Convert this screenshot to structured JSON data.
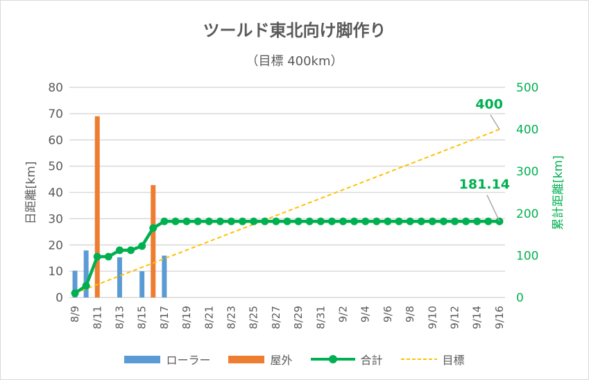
{
  "chart_data": {
    "type": "bar+line",
    "title": "ツールド東北向け脚作り",
    "subtitle": "（目標 400km）",
    "ylabel": "日距離[km]",
    "y2label": "累計距離[km]",
    "ylim": [
      0,
      80
    ],
    "y2lim": [
      0,
      500
    ],
    "yticks": [
      "0",
      "10",
      "20",
      "30",
      "40",
      "50",
      "60",
      "70",
      "80"
    ],
    "y2ticks": [
      "0",
      "100",
      "200",
      "300",
      "400",
      "500"
    ],
    "categories": [
      "8/9",
      "8/10",
      "8/11",
      "8/12",
      "8/13",
      "8/14",
      "8/15",
      "8/16",
      "8/17",
      "8/18",
      "8/19",
      "8/20",
      "8/21",
      "8/22",
      "8/23",
      "8/24",
      "8/25",
      "8/26",
      "8/27",
      "8/28",
      "8/29",
      "8/30",
      "8/31",
      "9/1",
      "9/2",
      "9/3",
      "9/4",
      "9/5",
      "9/6",
      "9/7",
      "9/8",
      "9/9",
      "9/10",
      "9/11",
      "9/12",
      "9/13",
      "9/14",
      "9/15",
      "9/16"
    ],
    "x_tick_labels": [
      "8/9",
      "8/11",
      "8/13",
      "8/15",
      "8/17",
      "8/19",
      "8/21",
      "8/23",
      "8/25",
      "8/27",
      "8/29",
      "8/31",
      "9/2",
      "9/4",
      "9/6",
      "9/8",
      "9/10",
      "9/12",
      "9/14",
      "9/16"
    ],
    "series": [
      {
        "name": "ローラー",
        "type": "bar",
        "axis": "left",
        "color": "#5B9BD5",
        "values": [
          10.2,
          17.9,
          0,
          0,
          15.3,
          0,
          10.0,
          0,
          15.94,
          0,
          0,
          0,
          0,
          0,
          0,
          0,
          0,
          0,
          0,
          0,
          0,
          0,
          0,
          0,
          0,
          0,
          0,
          0,
          0,
          0,
          0,
          0,
          0,
          0,
          0,
          0,
          0,
          0,
          0
        ]
      },
      {
        "name": "屋外",
        "type": "bar",
        "axis": "left",
        "color": "#ED7D31",
        "values": [
          0,
          0,
          69.0,
          0,
          0,
          0,
          0,
          42.8,
          0,
          0,
          0,
          0,
          0,
          0,
          0,
          0,
          0,
          0,
          0,
          0,
          0,
          0,
          0,
          0,
          0,
          0,
          0,
          0,
          0,
          0,
          0,
          0,
          0,
          0,
          0,
          0,
          0,
          0,
          0
        ]
      },
      {
        "name": "合計",
        "type": "line",
        "axis": "right",
        "color": "#00B050",
        "cumulative_of": [
          "ローラー",
          "屋外"
        ],
        "last_label": "181.14"
      },
      {
        "name": "目標",
        "type": "line-dashed",
        "axis": "right",
        "color": "#FFC000",
        "target_total": 400,
        "last_label": "400"
      }
    ],
    "legend_position": "bottom",
    "grid": true
  }
}
